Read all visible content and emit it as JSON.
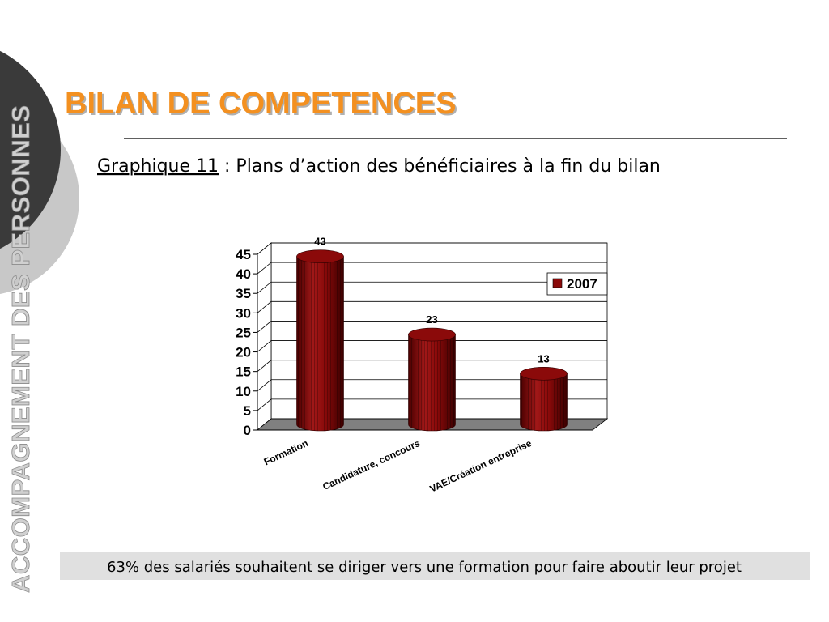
{
  "sidebar": "ACCOMPAGNEMENT DES PERSONNES",
  "header": {
    "title": "BILAN DE COMPETENCES"
  },
  "caption": {
    "label": "Graphique 11",
    "text": " : Plans d’action des bénéficiaires à la fin du bilan"
  },
  "footer": "63% des salariés souhaitent se diriger vers une formation pour faire aboutir leur projet",
  "chart_data": {
    "type": "bar",
    "categories": [
      "Formation",
      "Candidature, concours",
      "VAE/Création entreprise"
    ],
    "series": [
      {
        "name": "2007",
        "color": "#8b0a0a",
        "values": [
          43,
          23,
          13
        ]
      }
    ],
    "ylim": [
      0,
      45
    ],
    "yticks": [
      0,
      5,
      10,
      15,
      20,
      25,
      30,
      35,
      40,
      45
    ],
    "grid": true,
    "legend": "right"
  }
}
